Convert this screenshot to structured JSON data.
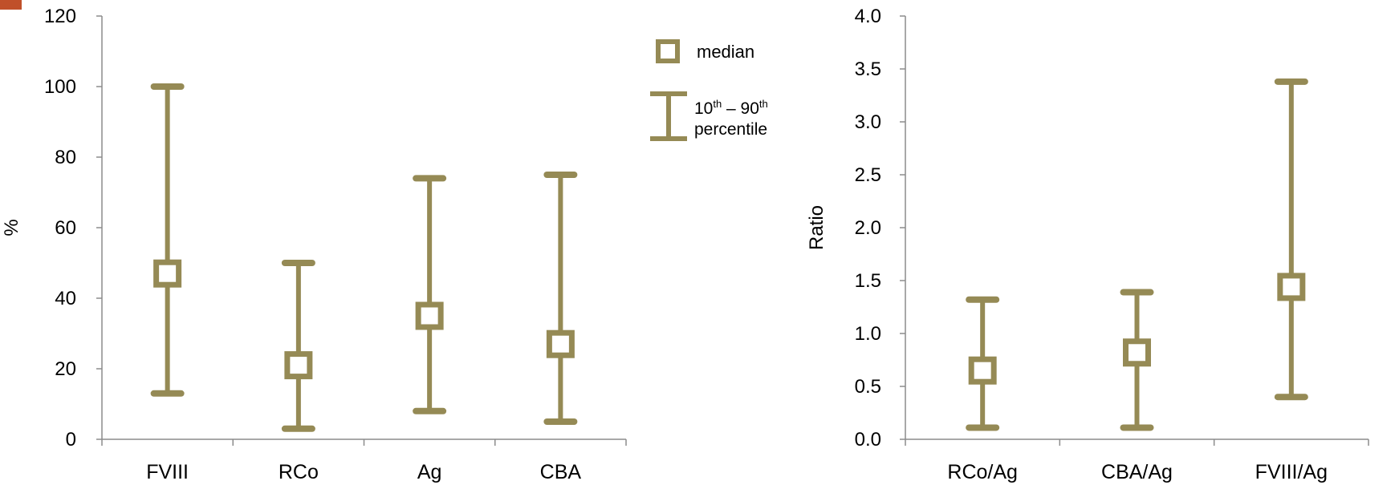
{
  "chart_data": [
    {
      "type": "errorbar",
      "title": "",
      "xlabel": "",
      "ylabel": "%",
      "ylim": [
        0,
        120
      ],
      "yticks": [
        "0",
        "20",
        "40",
        "60",
        "80",
        "100",
        "120"
      ],
      "categories": [
        "FVIII",
        "RCo",
        "Ag",
        "CBA"
      ],
      "median": [
        47,
        21,
        35,
        27
      ],
      "p10": [
        13,
        3,
        8,
        5
      ],
      "p90": [
        100,
        50,
        74,
        75
      ]
    },
    {
      "type": "errorbar",
      "title": "",
      "xlabel": "",
      "ylabel": "Ratio",
      "ylim": [
        0,
        4
      ],
      "yticks": [
        "0.0",
        "0.5",
        "1.0",
        "1.5",
        "2.0",
        "2.5",
        "3.0",
        "3.5",
        "4.0"
      ],
      "categories": [
        "RCo/Ag",
        "CBA/Ag",
        "FVIII/Ag"
      ],
      "median": [
        0.65,
        0.82,
        1.44
      ],
      "p10": [
        0.11,
        0.11,
        0.4
      ],
      "p90": [
        1.32,
        1.39,
        3.38
      ]
    }
  ],
  "legend": {
    "median_label": "median",
    "range_label_lower_sup": "th",
    "range_label_upper_sup": "th",
    "range_label_text_1": "10",
    "range_label_dash": " – 90",
    "range_label_line2": "percentile"
  },
  "colors": {
    "series": "#958a55",
    "axis": "#8c8c8c",
    "corner_mark": "#c0502a"
  }
}
